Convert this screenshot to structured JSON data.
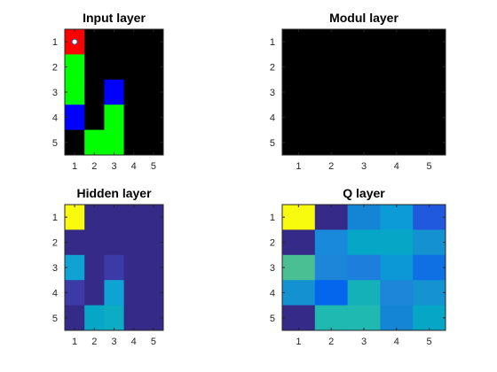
{
  "chart_data": [
    {
      "type": "heatmap",
      "title": "Input layer",
      "x": [
        1,
        2,
        3,
        4,
        5
      ],
      "y": [
        1,
        2,
        3,
        4,
        5
      ],
      "xlim": [
        0.5,
        5.5
      ],
      "ylim": [
        0.5,
        5.5
      ],
      "cells": [
        [
          "#ff0000",
          "#000000",
          "#000000",
          "#000000",
          "#000000"
        ],
        [
          "#00ff00",
          "#000000",
          "#000000",
          "#000000",
          "#000000"
        ],
        [
          "#00ff00",
          "#000000",
          "#0000ff",
          "#000000",
          "#000000"
        ],
        [
          "#0000ff",
          "#000000",
          "#00ff00",
          "#000000",
          "#000000"
        ],
        [
          "#000000",
          "#00ff00",
          "#00ff00",
          "#000000",
          "#000000"
        ]
      ],
      "marker": {
        "x": 1,
        "y": 1,
        "color": "#ffffff",
        "edge": "#2a5fb0"
      }
    },
    {
      "type": "heatmap",
      "title": "Modul layer",
      "x": [
        1,
        2,
        3,
        4,
        5
      ],
      "y": [
        1,
        2,
        3,
        4,
        5
      ],
      "xlim": [
        0.5,
        5.5
      ],
      "ylim": [
        0.5,
        5.5
      ],
      "cells": [
        [
          "#000000",
          "#000000",
          "#000000",
          "#000000",
          "#000000"
        ],
        [
          "#000000",
          "#000000",
          "#000000",
          "#000000",
          "#000000"
        ],
        [
          "#000000",
          "#000000",
          "#000000",
          "#000000",
          "#000000"
        ],
        [
          "#000000",
          "#000000",
          "#000000",
          "#000000",
          "#000000"
        ],
        [
          "#000000",
          "#000000",
          "#000000",
          "#000000",
          "#000000"
        ]
      ]
    },
    {
      "type": "heatmap",
      "title": "Hidden layer",
      "x": [
        1,
        2,
        3,
        4,
        5
      ],
      "y": [
        1,
        2,
        3,
        4,
        5
      ],
      "xlim": [
        0.5,
        5.5
      ],
      "ylim": [
        0.5,
        5.5
      ],
      "cells": [
        [
          "#f9fb0e",
          "#352a87",
          "#352a87",
          "#352a87",
          "#352a87"
        ],
        [
          "#352a87",
          "#352a87",
          "#352a87",
          "#352a87",
          "#352a87"
        ],
        [
          "#0fa3d3",
          "#352a87",
          "#3b3aa6",
          "#352a87",
          "#352a87"
        ],
        [
          "#3b3aa6",
          "#352a87",
          "#0fa3d3",
          "#352a87",
          "#352a87"
        ],
        [
          "#352a87",
          "#06a7c6",
          "#0bacc4",
          "#352a87",
          "#352a87"
        ]
      ]
    },
    {
      "type": "heatmap",
      "title": "Q layer",
      "x": [
        1,
        2,
        3,
        4,
        5
      ],
      "y": [
        1,
        2,
        3,
        4,
        5
      ],
      "xlim": [
        0.5,
        5.5
      ],
      "ylim": [
        0.5,
        5.5
      ],
      "cells": [
        [
          "#f9fb0e",
          "#352a87",
          "#1485d4",
          "#0d9bd8",
          "#2058de"
        ],
        [
          "#352a87",
          "#1989dc",
          "#06a7c6",
          "#06a7c6",
          "#1391d1"
        ],
        [
          "#4bbf94",
          "#1d86d9",
          "#1d7edc",
          "#0c97d6",
          "#0f70e4"
        ],
        [
          "#1391d1",
          "#0366ed",
          "#14b1b8",
          "#1d86d9",
          "#1592d2"
        ],
        [
          "#352a87",
          "#1fb9b1",
          "#1fb9b1",
          "#1485d4",
          "#06a7c6"
        ]
      ]
    }
  ]
}
